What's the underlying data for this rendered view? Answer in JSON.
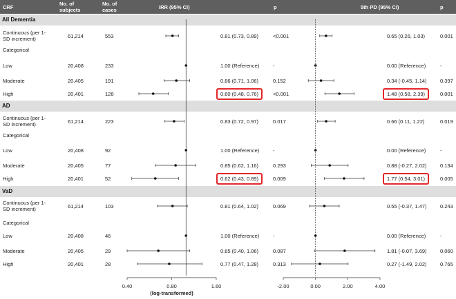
{
  "header": {
    "crf": "CRF",
    "subjects": "No. of\nsubjects",
    "cases": "No. of\ncases",
    "irr": "IRR (95% CI)",
    "p1": "p",
    "pd": "5th PD (95% CI)",
    "p2": "p"
  },
  "colors": {
    "header_bg": "#5f5f5f",
    "section_bg": "#dedede",
    "highlight": "#e3262a"
  },
  "sections": [
    {
      "title": "All Dementia",
      "rows": [
        {
          "label": "Continuous (per 1-SD increment)",
          "subjects": "61,214",
          "cases": "553",
          "irr": "0.81 (0.73, 0.89)",
          "p_irr": "<0.001",
          "pd": "0.65 (0.26, 1.03)",
          "p_pd": "0.001",
          "irr_est": 0.81,
          "irr_lo": 0.73,
          "irr_hi": 0.89,
          "pd_est": 0.65,
          "pd_lo": 0.26,
          "pd_hi": 1.03,
          "highlight": false
        },
        {
          "label": "Categorical",
          "header": true
        },
        {
          "label": "Low",
          "subjects": "20,408",
          "cases": "233",
          "irr": "1.00 (Reference)",
          "p_irr": "-",
          "pd": "0.00 (Reference)",
          "p_pd": "-",
          "irr_est": 1.0,
          "pd_est": 0.0,
          "highlight": false
        },
        {
          "label": "Moderate",
          "subjects": "20,405",
          "cases": "191",
          "irr": "0.86 (0.71, 1.06)",
          "p_irr": "0.152",
          "pd": "0.34 (-0.45, 1.14)",
          "p_pd": "0.397",
          "irr_est": 0.86,
          "irr_lo": 0.71,
          "irr_hi": 1.06,
          "pd_est": 0.34,
          "pd_lo": -0.45,
          "pd_hi": 1.14,
          "highlight": false
        },
        {
          "label": "High",
          "subjects": "20,401",
          "cases": "128",
          "irr": "0.60 (0.48, 0.76)",
          "p_irr": "<0.001",
          "pd": "1.48 (0.58, 2.39)",
          "p_pd": "0.001",
          "irr_est": 0.6,
          "irr_lo": 0.48,
          "irr_hi": 0.76,
          "pd_est": 1.48,
          "pd_lo": 0.58,
          "pd_hi": 2.39,
          "highlight": true
        }
      ]
    },
    {
      "title": "AD",
      "rows": [
        {
          "label": "Continuous (per 1-SD increment)",
          "subjects": "61,214",
          "cases": "223",
          "irr": "0.83 (0.72, 0.97)",
          "p_irr": "0.017",
          "pd": "0.66 (0.11, 1.22)",
          "p_pd": "0.019",
          "irr_est": 0.83,
          "irr_lo": 0.72,
          "irr_hi": 0.97,
          "pd_est": 0.66,
          "pd_lo": 0.11,
          "pd_hi": 1.22,
          "highlight": false
        },
        {
          "label": "Categorical",
          "header": true
        },
        {
          "label": "Low",
          "subjects": "20,408",
          "cases": "92",
          "irr": "1.00 (Reference)",
          "p_irr": "-",
          "pd": "0.00 (Reference)",
          "p_pd": "-",
          "irr_est": 1.0,
          "pd_est": 0.0,
          "highlight": false
        },
        {
          "label": "Moderate",
          "subjects": "20,405",
          "cases": "77",
          "irr": "0.85 (0.62, 1.16)",
          "p_irr": "0.293",
          "pd": "0.88 (-0.27, 2.02)",
          "p_pd": "0.134",
          "irr_est": 0.85,
          "irr_lo": 0.62,
          "irr_hi": 1.16,
          "pd_est": 0.88,
          "pd_lo": -0.27,
          "pd_hi": 2.02,
          "highlight": false
        },
        {
          "label": "High",
          "subjects": "20,401",
          "cases": "52",
          "irr": "0.62 (0.43, 0.89)",
          "p_irr": "0.009",
          "pd": "1.77 (0.54, 3.01)",
          "p_pd": "0.005",
          "irr_est": 0.62,
          "irr_lo": 0.43,
          "irr_hi": 0.89,
          "pd_est": 1.77,
          "pd_lo": 0.54,
          "pd_hi": 3.01,
          "highlight": true
        }
      ]
    },
    {
      "title": "VaD",
      "rows": [
        {
          "label": "Continuous (per 1-SD increment)",
          "subjects": "61,214",
          "cases": "103",
          "irr": "0.81 (0.64, 1.02)",
          "p_irr": "0.069",
          "pd": "0.55 (-0.37, 1.47)",
          "p_pd": "0.243",
          "irr_est": 0.81,
          "irr_lo": 0.64,
          "irr_hi": 1.02,
          "pd_est": 0.55,
          "pd_lo": -0.37,
          "pd_hi": 1.47,
          "highlight": false
        },
        {
          "label": "Categorical",
          "header": true
        },
        {
          "label": "Low",
          "subjects": "20,408",
          "cases": "46",
          "irr": "1.00 (Reference)",
          "p_irr": "-",
          "pd": "0.00 (Reference)",
          "p_pd": "-",
          "irr_est": 1.0,
          "pd_est": 0.0,
          "highlight": false
        },
        {
          "label": "Moderate",
          "subjects": "20,405",
          "cases": "29",
          "irr": "0.65 (0.40, 1.06)",
          "p_irr": "0.087",
          "pd": "1.81 (-0.07, 3.69)",
          "p_pd": "0.060",
          "irr_est": 0.65,
          "irr_lo": 0.4,
          "irr_hi": 1.06,
          "pd_est": 1.81,
          "pd_lo": -0.07,
          "pd_hi": 3.69,
          "highlight": false
        },
        {
          "label": "High",
          "subjects": "20,401",
          "cases": "28",
          "irr": "0.77 (0.47, 1.28)",
          "p_irr": "0.313",
          "pd": "0.27 (-1.49, 2.02)",
          "p_pd": "0.765",
          "irr_est": 0.77,
          "irr_lo": 0.47,
          "irr_hi": 1.28,
          "pd_est": 0.27,
          "pd_lo": -1.49,
          "pd_hi": 2.02,
          "highlight": false
        }
      ]
    }
  ],
  "chart_data": [
    {
      "type": "scatter",
      "title": "IRR (95% CI)",
      "xlabel": "(log-transformed)",
      "xscale": "log",
      "xlim": [
        0.4,
        1.6
      ],
      "xticks": [
        "0.40",
        "0.80",
        "1.60"
      ],
      "reference_line": 1.0
    },
    {
      "type": "scatter",
      "title": "5th PD (95% CI)",
      "xlabel": "",
      "xscale": "linear",
      "xlim": [
        -2.0,
        4.0
      ],
      "xticks": [
        "-2.00",
        "0.00",
        "2.00",
        "4.00"
      ],
      "reference_line": 0.0
    }
  ]
}
